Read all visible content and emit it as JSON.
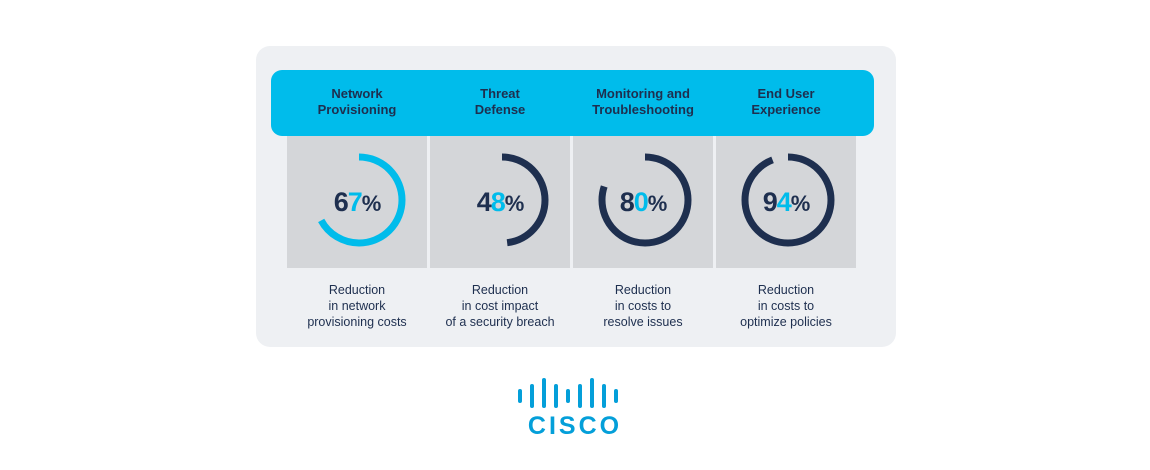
{
  "colors": {
    "accent": "#00bceb",
    "navy": "#1e2f4f",
    "tile": "#d4d6d9",
    "card": "#eef0f3",
    "brand": "#049fd9"
  },
  "columns": [
    {
      "header": [
        "Network",
        "Provisioning"
      ],
      "percent_value": 67,
      "percent_digits": [
        "6",
        "7"
      ],
      "percent_sign": "%",
      "description": [
        "Reduction",
        "in network",
        "provisioning costs"
      ]
    },
    {
      "header": [
        "Threat",
        "Defense"
      ],
      "percent_value": 48,
      "percent_digits": [
        "4",
        "8"
      ],
      "percent_sign": "%",
      "description": [
        "Reduction",
        "in cost impact",
        "of a security breach"
      ]
    },
    {
      "header": [
        "Monitoring and",
        "Troubleshooting"
      ],
      "percent_value": 80,
      "percent_digits": [
        "8",
        "0"
      ],
      "percent_sign": "%",
      "description": [
        "Reduction",
        "in costs to",
        "resolve issues"
      ]
    },
    {
      "header": [
        "End User",
        "Experience"
      ],
      "percent_value": 94,
      "percent_digits": [
        "9",
        "4"
      ],
      "percent_sign": "%",
      "description": [
        "Reduction",
        "in costs to",
        "optimize policies"
      ]
    }
  ],
  "logo": {
    "wordmark": "CISCO",
    "icon": "cisco-bridge-bars-icon"
  }
}
